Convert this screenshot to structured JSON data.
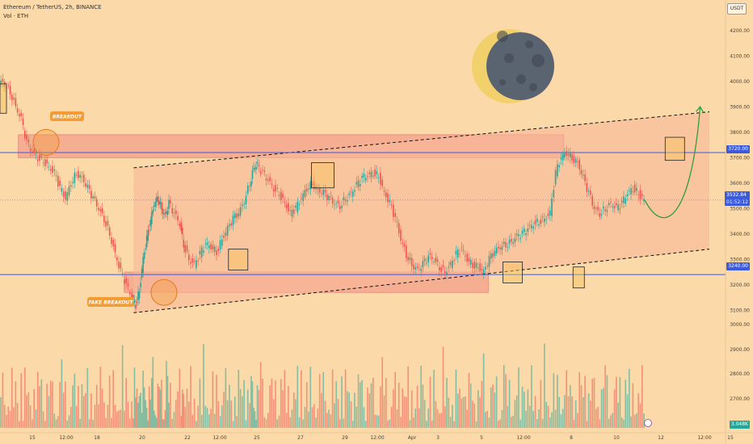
{
  "header": {
    "symbol_line": "Ethereum / TetherUS, 2h, BINANCE",
    "volume_line": "Vol · ETH"
  },
  "currency_button": "USDT",
  "colors": {
    "background": "#fbd9a8",
    "up": "#26a69a",
    "down": "#ef5350",
    "zone_fill": "#f28b82",
    "channel_fill": "#f8b89a",
    "level_line": "#3b5bdb",
    "forecast": "#2e9e3a",
    "label_badge": "#f39c33",
    "moon_dark": "#5a6470",
    "moon_light": "#f2d06b"
  },
  "price_axis": {
    "ticks": [
      "4200.00",
      "4100.00",
      "4000.00",
      "3900.00",
      "3800.00",
      "3700.00",
      "3600.00",
      "3500.00",
      "3400.00",
      "3300.00",
      "3200.00",
      "3100.00"
    ],
    "ymin": 3050,
    "ymax": 4250
  },
  "volume_axis": {
    "ticks": [
      "3000.00",
      "2900.00",
      "2800.00",
      "2700.00"
    ]
  },
  "time_axis": {
    "ticks": [
      "15",
      "12:00",
      "18",
      "20",
      "22",
      "12:00",
      "25",
      "27",
      "29",
      "12:00",
      "Apr",
      "3",
      "5",
      "12:00",
      "8",
      "10",
      "12",
      "12:00",
      "15"
    ]
  },
  "levels": {
    "resistance": {
      "price": 3720,
      "label": "3720.00"
    },
    "support": {
      "price": 3240,
      "label": "3240.00"
    },
    "current": {
      "price": 3532.84,
      "label": "3532.84",
      "countdown": "01:52:12"
    },
    "volume_current": "3.048K"
  },
  "annotations": {
    "breakout": "BREAKOUT",
    "fake_breakout": "FAKE BREAKOUT"
  },
  "chart_data": {
    "type": "candlestick",
    "title": "",
    "price_path": [
      [
        0,
        4000
      ],
      [
        6,
        3990
      ],
      [
        12,
        3960
      ],
      [
        18,
        3900
      ],
      [
        24,
        3850
      ],
      [
        30,
        3760
      ],
      [
        36,
        3720
      ],
      [
        42,
        3700
      ],
      [
        48,
        3690
      ],
      [
        54,
        3660
      ],
      [
        60,
        3640
      ],
      [
        66,
        3580
      ],
      [
        72,
        3540
      ],
      [
        78,
        3600
      ],
      [
        84,
        3640
      ],
      [
        90,
        3620
      ],
      [
        96,
        3580
      ],
      [
        102,
        3540
      ],
      [
        108,
        3500
      ],
      [
        114,
        3460
      ],
      [
        120,
        3400
      ],
      [
        126,
        3320
      ],
      [
        132,
        3250
      ],
      [
        138,
        3200
      ],
      [
        144,
        3150
      ],
      [
        148,
        3120
      ],
      [
        152,
        3180
      ],
      [
        156,
        3300
      ],
      [
        160,
        3380
      ],
      [
        164,
        3450
      ],
      [
        168,
        3520
      ],
      [
        172,
        3540
      ],
      [
        176,
        3500
      ],
      [
        180,
        3470
      ],
      [
        184,
        3520
      ],
      [
        190,
        3480
      ],
      [
        196,
        3440
      ],
      [
        200,
        3360
      ],
      [
        206,
        3300
      ],
      [
        212,
        3280
      ],
      [
        218,
        3320
      ],
      [
        224,
        3360
      ],
      [
        230,
        3350
      ],
      [
        236,
        3330
      ],
      [
        242,
        3380
      ],
      [
        248,
        3420
      ],
      [
        254,
        3460
      ],
      [
        260,
        3480
      ],
      [
        266,
        3530
      ],
      [
        272,
        3600
      ],
      [
        276,
        3660
      ],
      [
        280,
        3670
      ],
      [
        286,
        3640
      ],
      [
        292,
        3610
      ],
      [
        298,
        3580
      ],
      [
        304,
        3560
      ],
      [
        310,
        3520
      ],
      [
        316,
        3480
      ],
      [
        322,
        3500
      ],
      [
        328,
        3540
      ],
      [
        334,
        3580
      ],
      [
        340,
        3600
      ],
      [
        346,
        3570
      ],
      [
        352,
        3560
      ],
      [
        358,
        3540
      ],
      [
        364,
        3520
      ],
      [
        370,
        3510
      ],
      [
        376,
        3540
      ],
      [
        382,
        3560
      ],
      [
        388,
        3590
      ],
      [
        394,
        3620
      ],
      [
        400,
        3630
      ],
      [
        406,
        3640
      ],
      [
        412,
        3630
      ],
      [
        418,
        3560
      ],
      [
        424,
        3520
      ],
      [
        430,
        3460
      ],
      [
        436,
        3380
      ],
      [
        442,
        3320
      ],
      [
        448,
        3280
      ],
      [
        454,
        3260
      ],
      [
        460,
        3280
      ],
      [
        466,
        3310
      ],
      [
        472,
        3300
      ],
      [
        478,
        3270
      ],
      [
        484,
        3250
      ],
      [
        490,
        3280
      ],
      [
        496,
        3320
      ],
      [
        502,
        3340
      ],
      [
        508,
        3300
      ],
      [
        514,
        3280
      ],
      [
        520,
        3270
      ],
      [
        526,
        3250
      ],
      [
        532,
        3300
      ],
      [
        538,
        3330
      ],
      [
        544,
        3350
      ],
      [
        550,
        3360
      ],
      [
        556,
        3370
      ],
      [
        562,
        3390
      ],
      [
        568,
        3400
      ],
      [
        574,
        3420
      ],
      [
        580,
        3440
      ],
      [
        586,
        3450
      ],
      [
        592,
        3460
      ],
      [
        598,
        3480
      ],
      [
        604,
        3640
      ],
      [
        610,
        3700
      ],
      [
        616,
        3720
      ],
      [
        622,
        3700
      ],
      [
        628,
        3680
      ],
      [
        634,
        3620
      ],
      [
        640,
        3560
      ],
      [
        646,
        3500
      ],
      [
        652,
        3480
      ],
      [
        658,
        3500
      ],
      [
        664,
        3520
      ],
      [
        670,
        3500
      ],
      [
        676,
        3520
      ],
      [
        682,
        3560
      ],
      [
        688,
        3580
      ],
      [
        694,
        3560
      ],
      [
        700,
        3532.84
      ]
    ],
    "forecast_path": [
      [
        700,
        3532.84
      ],
      [
        720,
        3420
      ],
      [
        740,
        3450
      ],
      [
        760,
        3900
      ]
    ],
    "channel": {
      "upper_start": [
        145,
        3660
      ],
      "upper_end": [
        770,
        3880
      ],
      "lower_start": [
        145,
        3090
      ],
      "lower_end": [
        770,
        3340
      ]
    },
    "zones": [
      {
        "name": "resistance-zone",
        "price_low": 3700,
        "price_high": 3790,
        "x_start": 20,
        "x_end": 612
      },
      {
        "name": "support-zone",
        "price_low": 3170,
        "price_high": 3250,
        "x_start": 135,
        "x_end": 530
      }
    ]
  }
}
